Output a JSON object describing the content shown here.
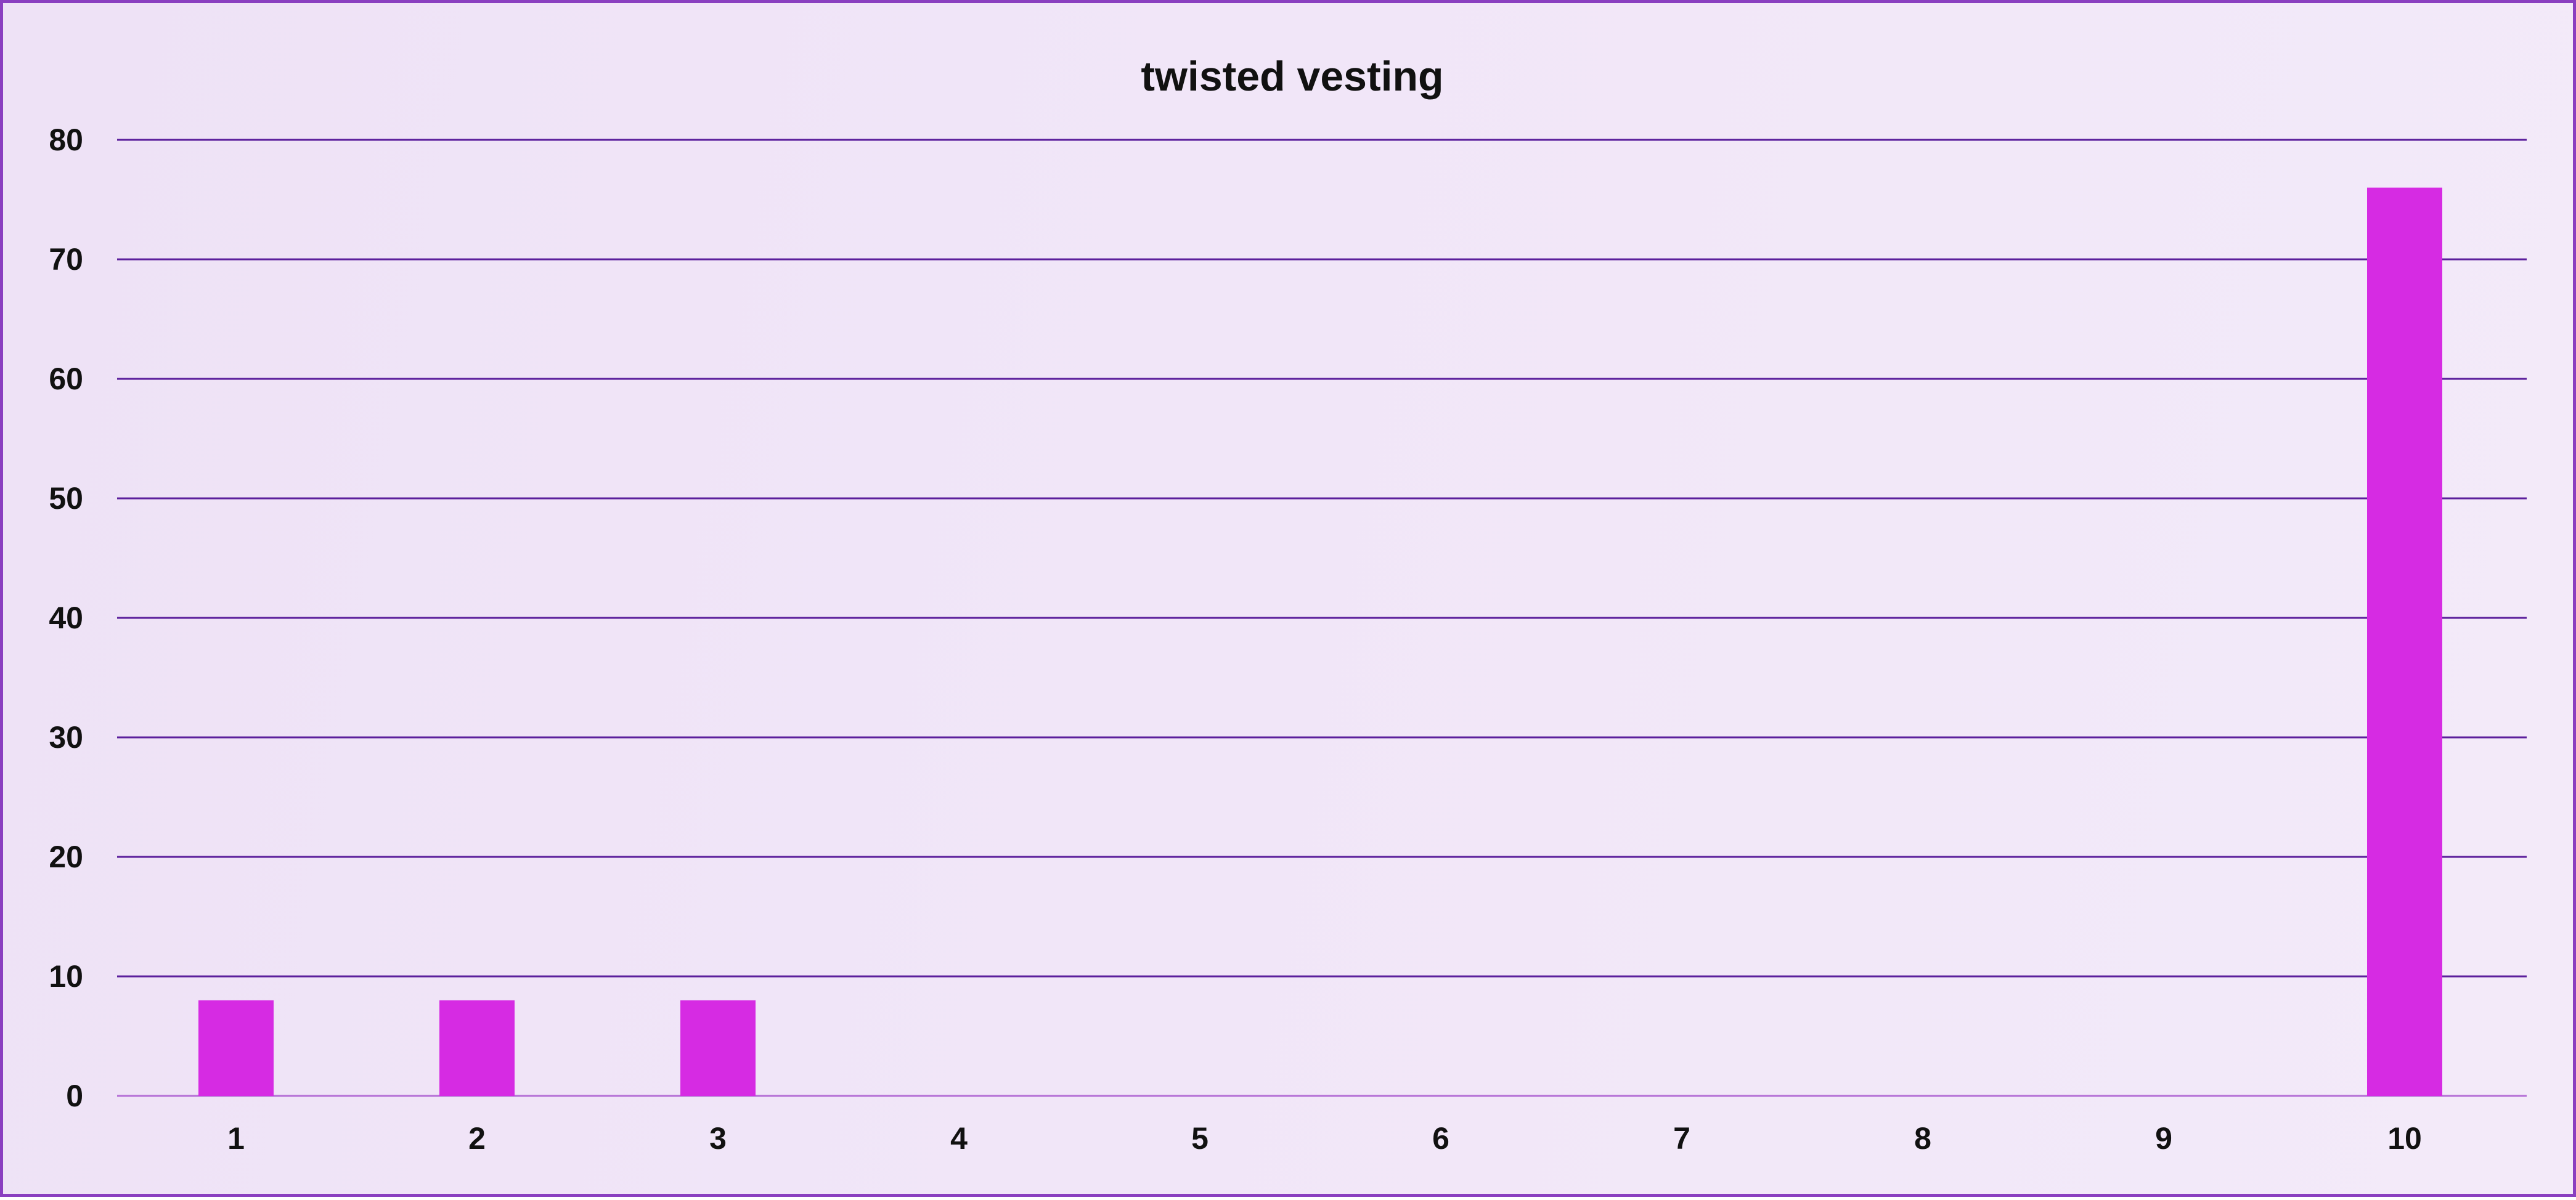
{
  "chart_data": {
    "type": "bar",
    "title": "twisted vesting",
    "xlabel": "",
    "ylabel": "",
    "categories": [
      "1",
      "2",
      "3",
      "4",
      "5",
      "6",
      "7",
      "8",
      "9",
      "10"
    ],
    "values": [
      8,
      8,
      8,
      0,
      0,
      0,
      0,
      0,
      0,
      76
    ],
    "ylim": [
      0,
      80
    ],
    "yticks": [
      0,
      10,
      20,
      30,
      40,
      50,
      60,
      70,
      80
    ],
    "grid": true,
    "legend": "none",
    "colors": {
      "bar": "#d62be3",
      "grid": "#5b1f9c",
      "baseline": "#b46fd6",
      "border": "#8a3fc0",
      "text": "#111111"
    }
  }
}
